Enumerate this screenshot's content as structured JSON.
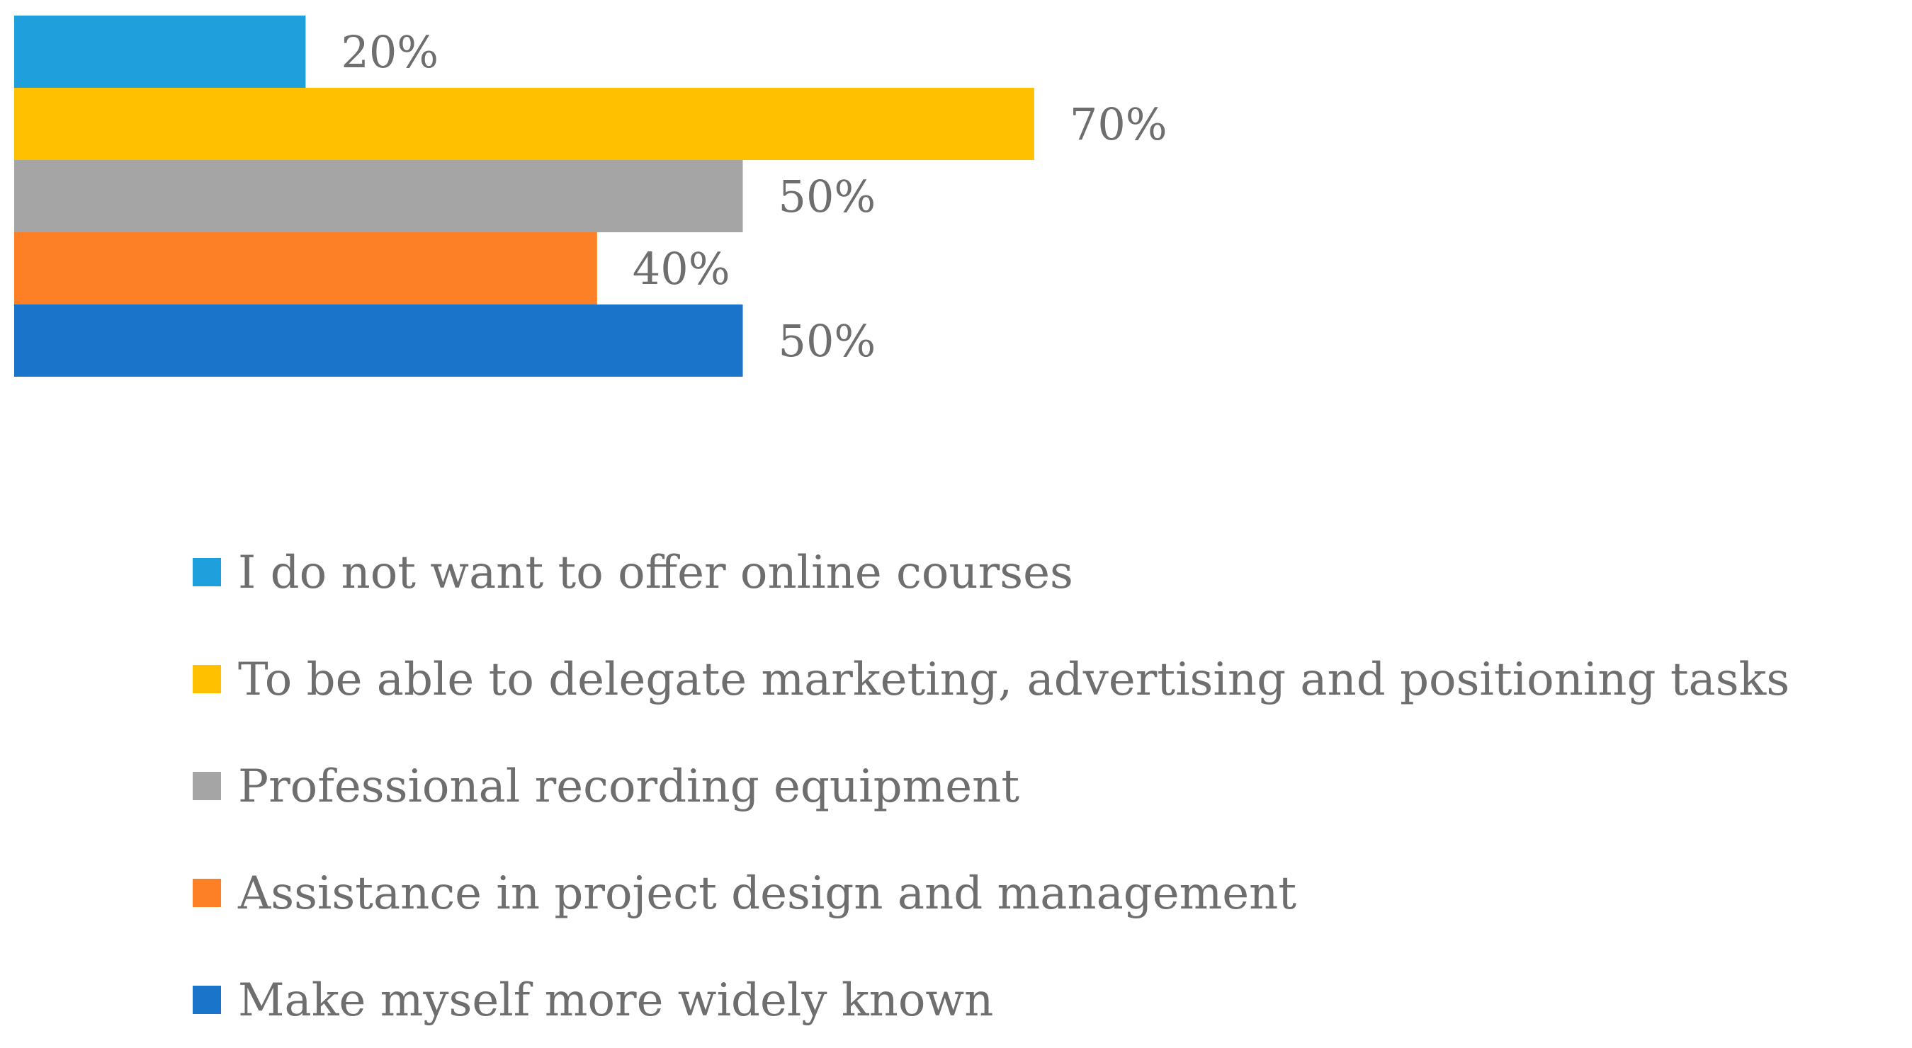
{
  "chart_data": {
    "type": "bar",
    "orientation": "horizontal",
    "value_unit": "%",
    "xlim": [
      0,
      70
    ],
    "grid": false,
    "legend_position": "bottom",
    "series": [
      {
        "name": "I do not want to offer online courses",
        "value": 20,
        "label": "20%",
        "color": "#1f9fdb"
      },
      {
        "name": "To be able to delegate marketing, advertising and positioning tasks",
        "value": 70,
        "label": "70%",
        "color": "#ffc000"
      },
      {
        "name": "Professional recording equipment",
        "value": 50,
        "label": "50%",
        "color": "#a5a5a5"
      },
      {
        "name": "Assistance in project design and management",
        "value": 40,
        "label": "40%",
        "color": "#fd7f26"
      },
      {
        "name": "Make myself more widely known",
        "value": 50,
        "label": "50%",
        "color": "#1a74c9"
      }
    ]
  }
}
